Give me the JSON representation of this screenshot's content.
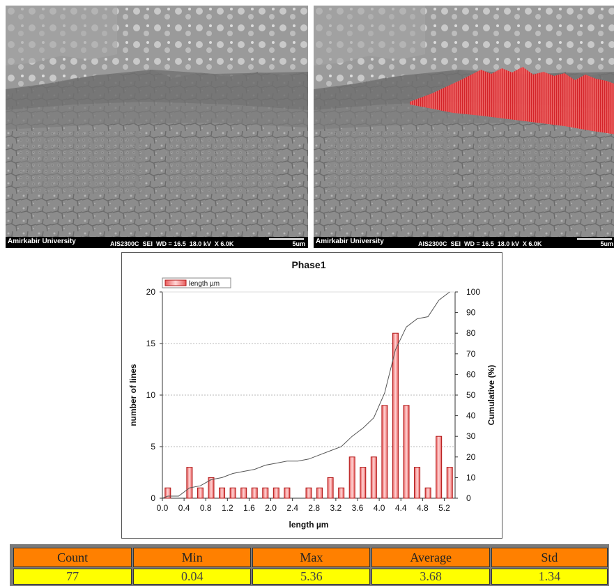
{
  "micrographs": {
    "left": {
      "org": "Amirkabir University",
      "info": "AIS2300C  SEI  WD = 16.5  18.0 kV  X 6.0K",
      "scale": "5um"
    },
    "right": {
      "org": "Amirkabir University",
      "info": "AIS2300C  SEI  WD = 16.5  18.0 kV  X 6.0K",
      "scale": "5um"
    }
  },
  "colors": {
    "bar_fill": "#f07070",
    "highlight": "#e8232a",
    "header_bg": "#ff8000",
    "value_bg": "#ffff00"
  },
  "chart_data": {
    "type": "bar",
    "title": "Phase1",
    "xlabel": "length µm",
    "ylabel": "number of lines",
    "y2label": "Cumulative (%)",
    "legend": "length µm",
    "legend_position": "top-left",
    "xlim": [
      0,
      5.4
    ],
    "ylim": [
      0,
      20
    ],
    "y2lim": [
      0,
      100
    ],
    "xticks": [
      "0.0",
      "0.4",
      "0.8",
      "1.2",
      "1.6",
      "2.0",
      "2.4",
      "2.8",
      "3.2",
      "3.6",
      "4.0",
      "4.4",
      "4.8",
      "5.2"
    ],
    "yticks": [
      "0",
      "5",
      "10",
      "15",
      "20"
    ],
    "y2ticks": [
      "0",
      "10",
      "20",
      "30",
      "40",
      "50",
      "60",
      "70",
      "80",
      "90",
      "100"
    ],
    "bars": [
      {
        "x": 0.1,
        "value": 1
      },
      {
        "x": 0.5,
        "value": 3
      },
      {
        "x": 0.7,
        "value": 1
      },
      {
        "x": 0.9,
        "value": 2
      },
      {
        "x": 1.1,
        "value": 1
      },
      {
        "x": 1.3,
        "value": 1
      },
      {
        "x": 1.5,
        "value": 1
      },
      {
        "x": 1.7,
        "value": 1
      },
      {
        "x": 1.9,
        "value": 1
      },
      {
        "x": 2.1,
        "value": 1
      },
      {
        "x": 2.3,
        "value": 1
      },
      {
        "x": 2.7,
        "value": 1
      },
      {
        "x": 2.9,
        "value": 1
      },
      {
        "x": 3.1,
        "value": 2
      },
      {
        "x": 3.3,
        "value": 1
      },
      {
        "x": 3.5,
        "value": 4
      },
      {
        "x": 3.7,
        "value": 3
      },
      {
        "x": 3.9,
        "value": 4
      },
      {
        "x": 4.1,
        "value": 9
      },
      {
        "x": 4.3,
        "value": 16
      },
      {
        "x": 4.5,
        "value": 9
      },
      {
        "x": 4.7,
        "value": 3
      },
      {
        "x": 4.9,
        "value": 1
      },
      {
        "x": 5.1,
        "value": 6
      },
      {
        "x": 5.3,
        "value": 3
      }
    ],
    "cumulative": [
      {
        "x": 0.0,
        "y": 0
      },
      {
        "x": 0.1,
        "y": 1
      },
      {
        "x": 0.3,
        "y": 1
      },
      {
        "x": 0.5,
        "y": 5
      },
      {
        "x": 0.7,
        "y": 6
      },
      {
        "x": 0.9,
        "y": 9
      },
      {
        "x": 1.1,
        "y": 10
      },
      {
        "x": 1.3,
        "y": 12
      },
      {
        "x": 1.5,
        "y": 13
      },
      {
        "x": 1.7,
        "y": 14
      },
      {
        "x": 1.9,
        "y": 16
      },
      {
        "x": 2.1,
        "y": 17
      },
      {
        "x": 2.3,
        "y": 18
      },
      {
        "x": 2.5,
        "y": 18
      },
      {
        "x": 2.7,
        "y": 19
      },
      {
        "x": 2.9,
        "y": 21
      },
      {
        "x": 3.1,
        "y": 23
      },
      {
        "x": 3.3,
        "y": 25
      },
      {
        "x": 3.5,
        "y": 30
      },
      {
        "x": 3.7,
        "y": 34
      },
      {
        "x": 3.9,
        "y": 39
      },
      {
        "x": 4.1,
        "y": 51
      },
      {
        "x": 4.3,
        "y": 72
      },
      {
        "x": 4.5,
        "y": 83
      },
      {
        "x": 4.7,
        "y": 87
      },
      {
        "x": 4.9,
        "y": 88
      },
      {
        "x": 5.1,
        "y": 96
      },
      {
        "x": 5.3,
        "y": 100
      }
    ]
  },
  "stats": {
    "headers": [
      "Count",
      "Min",
      "Max",
      "Average",
      "Std"
    ],
    "values": [
      "77",
      "0.04",
      "5.36",
      "3.68",
      "1.34"
    ]
  }
}
